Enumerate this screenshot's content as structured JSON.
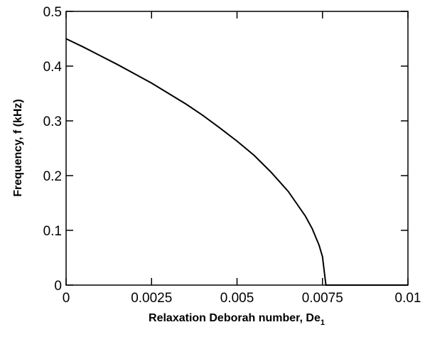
{
  "chart_data": {
    "type": "line",
    "x_label": "Relaxation Deborah number, De",
    "x_label_subscript": "1",
    "y_label": "Frequency, f (kHz)",
    "x": [
      0,
      0.0005,
      0.001,
      0.0015,
      0.002,
      0.0025,
      0.003,
      0.0035,
      0.004,
      0.0045,
      0.005,
      0.0055,
      0.006,
      0.0065,
      0.007,
      0.0072,
      0.0074,
      0.0075,
      0.0076,
      0.008,
      0.0085,
      0.009,
      0.0095,
      0.01
    ],
    "series": [
      {
        "color": "#000000",
        "values": [
          0.45,
          0.435,
          0.419,
          0.403,
          0.386,
          0.369,
          0.35,
          0.331,
          0.31,
          0.287,
          0.263,
          0.237,
          0.206,
          0.171,
          0.126,
          0.103,
          0.073,
          0.052,
          0,
          0,
          0,
          0,
          0,
          0
        ]
      }
    ],
    "xlim": [
      0,
      0.01
    ],
    "xticks": [
      0,
      0.0025,
      0.005,
      0.0075,
      0.01
    ],
    "ylim": [
      0,
      0.5
    ],
    "yticks": [
      0,
      0.1,
      0.2,
      0.3,
      0.4,
      0.5
    ]
  }
}
